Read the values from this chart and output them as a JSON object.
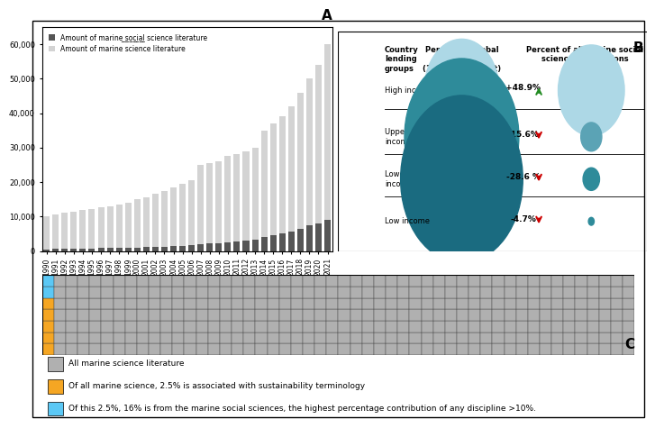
{
  "bar_years": [
    "1990",
    "1991",
    "1992",
    "1993",
    "1994",
    "1995",
    "1996",
    "1997",
    "1998",
    "1999",
    "2000",
    "2001",
    "2002",
    "2003",
    "2004",
    "2005",
    "2006",
    "2007",
    "2008",
    "2009",
    "2010",
    "2011",
    "2012",
    "2013",
    "2014",
    "2015",
    "2016",
    "2017",
    "2018",
    "2019",
    "2020",
    "2021"
  ],
  "bar_total": [
    10000,
    10500,
    11000,
    11500,
    11800,
    12200,
    12600,
    13000,
    13500,
    14000,
    15000,
    15500,
    16500,
    17500,
    18500,
    19500,
    20500,
    25000,
    25500,
    26000,
    27500,
    28000,
    29000,
    30000,
    35000,
    37000,
    39000,
    42000,
    46000,
    50000,
    54000,
    60000
  ],
  "bar_social": [
    500,
    550,
    600,
    650,
    700,
    750,
    800,
    850,
    900,
    950,
    1000,
    1100,
    1200,
    1300,
    1400,
    1500,
    1600,
    2000,
    2100,
    2200,
    2500,
    2800,
    3000,
    3200,
    4000,
    4500,
    5000,
    5500,
    6500,
    7500,
    8000,
    9000
  ],
  "bar_color_total": "#d3d3d3",
  "bar_color_social": "#555555",
  "panel_a_ylabel_values": [
    0,
    10000,
    20000,
    30000,
    40000,
    50000,
    60000
  ],
  "bubble_rows": [
    "High income",
    "Upper middle\nincome",
    "Lower middle\nincome",
    "Low income"
  ],
  "bubble_pop_sizes": [
    1200,
    2800,
    3200,
    200
  ],
  "bubble_pop_colors": [
    "#add8e6",
    "#2e8b9a",
    "#1a6b80",
    "#1a6b80"
  ],
  "bubble_pub_sizes": [
    8000,
    800,
    500,
    60
  ],
  "bubble_pub_colors": [
    "#add8e6",
    "#5ba3b5",
    "#2e8b9a",
    "#2e8b9a"
  ],
  "bubble_pct_labels": [
    "+48.9%",
    "-15.6%",
    "-28.6 %",
    "-4.7%"
  ],
  "bubble_arrow_colors": [
    "#228B22",
    "#cc0000",
    "#cc0000",
    "#cc0000"
  ],
  "bubble_arrow_up": [
    true,
    false,
    false,
    false
  ],
  "col1_header": "Country\nlending\ngroups",
  "col2_header": "Percent of global\npopulation\n(10km from coast)",
  "col3_header": "Percent of all marine social\nscience publications",
  "panel_b_label": "B",
  "panel_a_label": "A",
  "panel_c_label": "C",
  "grid_rows": 7,
  "grid_cols": 50,
  "orange_cells": 3,
  "blue_cells": 1,
  "grid_color_gray": "#b0b0b0",
  "grid_color_orange": "#f5a623",
  "grid_color_blue": "#5bc8f5",
  "grid_edge_color": "#444444",
  "legend_c_items": [
    [
      "#b0b0b0",
      "All marine science literature"
    ],
    [
      "#f5a623",
      "Of all marine science, 2.5% is associated with sustainability terminology"
    ],
    [
      "#5bc8f5",
      "Of this 2.5%, 16% is from the marine social sciences, the highest percentage contribution of any discipline >10%."
    ]
  ]
}
